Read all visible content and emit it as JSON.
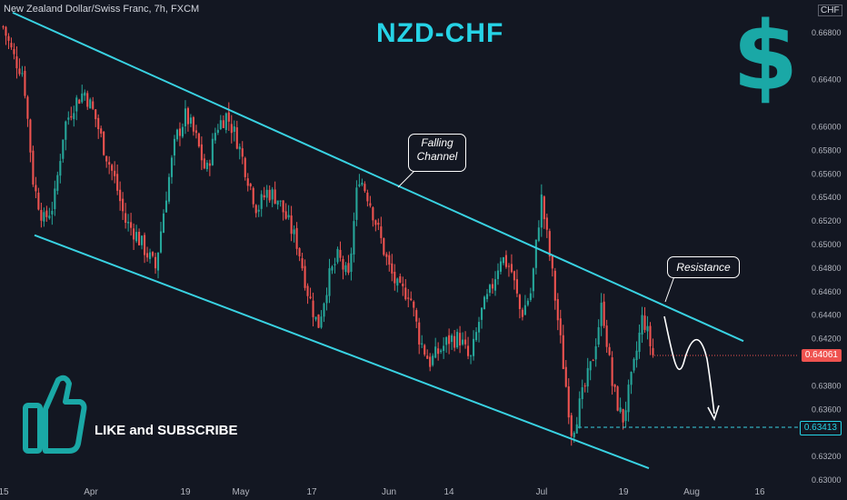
{
  "header": {
    "symbol_line": "New Zealand Dollar/Swiss Franc, 7h, FXCM"
  },
  "title": "NZD-CHF",
  "currency_badge": "CHF",
  "dollar_glyph": "$",
  "callouts": {
    "falling_channel_line1": "Falling",
    "falling_channel_line2": "Channel",
    "resistance": "Resistance"
  },
  "like_text": "LIKE and SUBSCRIBE",
  "colors": {
    "background": "#131722",
    "channel": "#39d2e2",
    "up_candle": "#26a69a",
    "down_candle": "#ef5350",
    "title": "#26d3e6",
    "thumb": "#1aa8a6"
  },
  "chart_data": {
    "type": "candlestick",
    "symbol": "NZD/CHF",
    "timeframe": "7h",
    "ylim": [
      0.63,
      0.67
    ],
    "y_ticks": [
      "0.66800",
      "0.66400",
      "0.66000",
      "0.65800",
      "0.65600",
      "0.65400",
      "0.65200",
      "0.65000",
      "0.64800",
      "0.64600",
      "0.64400",
      "0.64200",
      "0.63800",
      "0.63600",
      "0.63400",
      "0.63200",
      "0.63000"
    ],
    "x_ticks": [
      "15",
      "Apr",
      "19",
      "May",
      "17",
      "Jun",
      "14",
      "Jul",
      "19",
      "Aug",
      "16"
    ],
    "current_price": "0.64061",
    "support_level": "0.63413",
    "close_path": [
      0.6685,
      0.666,
      0.6645,
      0.655,
      0.652,
      0.6535,
      0.66,
      0.662,
      0.663,
      0.661,
      0.658,
      0.6555,
      0.652,
      0.651,
      0.6495,
      0.648,
      0.654,
      0.659,
      0.661,
      0.659,
      0.656,
      0.66,
      0.661,
      0.659,
      0.656,
      0.653,
      0.6545,
      0.654,
      0.652,
      0.65,
      0.646,
      0.643,
      0.647,
      0.649,
      0.647,
      0.656,
      0.654,
      0.651,
      0.648,
      0.646,
      0.646,
      0.642,
      0.64,
      0.641,
      0.642,
      0.642,
      0.64,
      0.644,
      0.646,
      0.649,
      0.648,
      0.644,
      0.646,
      0.654,
      0.648,
      0.641,
      0.634,
      0.637,
      0.64,
      0.645,
      0.638,
      0.635,
      0.639,
      0.644,
      0.6406
    ],
    "channel": {
      "upper": [
        {
          "x": "15",
          "y": 0.6697
        },
        {
          "x": "Aug",
          "y": 0.6418
        }
      ],
      "lower": [
        {
          "x": "15",
          "y": 0.6508
        },
        {
          "x": "Jul",
          "y": 0.631
        }
      ]
    },
    "annotations": [
      "Falling Channel",
      "Resistance",
      "LIKE and SUBSCRIBE"
    ]
  }
}
